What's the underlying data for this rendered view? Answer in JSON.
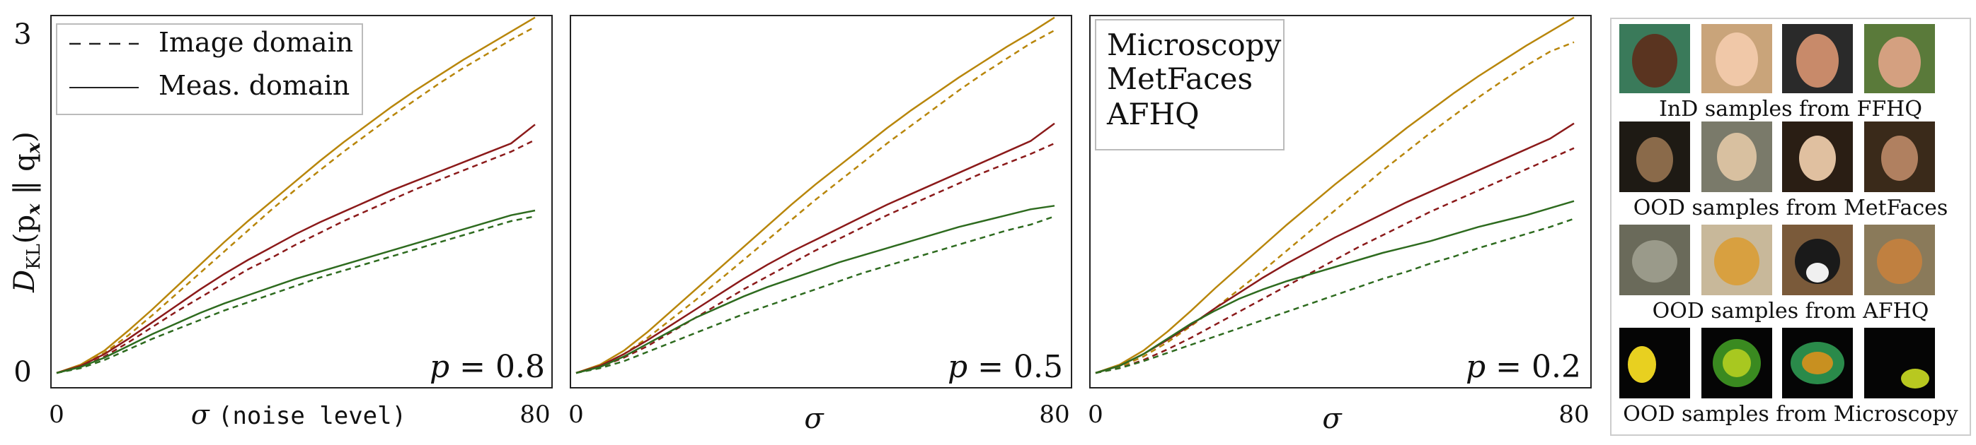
{
  "figure": {
    "y_axis_label": "D_KL(p_x ‖ q_x)",
    "y_axis_label_main": "D",
    "y_axis_label_sub": "KL",
    "y_axis_label_args": "(p",
    "y_axis_label_mid": " ‖ q",
    "y_axis_label_close": ")",
    "y_axis_label_x": "x",
    "y_ticks": [
      "3",
      "0"
    ]
  },
  "legend_styles": {
    "image_domain": "Image domain",
    "meas_domain": "Meas. domain"
  },
  "legend_datasets": [
    {
      "name": "Microscopy",
      "color": "#b8860b"
    },
    {
      "name": "MetFaces",
      "color": "#3a8a3a"
    },
    {
      "name": "AFHQ",
      "color": "#a83240"
    }
  ],
  "colors": {
    "microscopy": "#b8860b",
    "metfaces": "#2e6b1f",
    "afhq": "#8b1a1a",
    "metfaces_legend": "#4f9a4f",
    "afhq_legend": "#b0505a"
  },
  "chart_data": [
    {
      "type": "line",
      "annotation": "p = 0.8",
      "annotation_p": "p",
      "annotation_val": "= 0.8",
      "xlabel_symbol": "σ",
      "xlabel_text": "(noise level)",
      "xlabel": "σ (noise level)",
      "x_ticks": [
        "0",
        "80"
      ],
      "xlim": [
        0,
        80
      ],
      "ylim": [
        0,
        3
      ],
      "series": [
        {
          "name": "Microscopy",
          "style": "Meas. domain",
          "x": [
            0,
            4,
            8,
            12,
            16,
            20,
            24,
            28,
            32,
            36,
            40,
            44,
            48,
            52,
            56,
            60,
            64,
            68,
            72,
            76,
            80
          ],
          "y": [
            0,
            0.07,
            0.19,
            0.36,
            0.54,
            0.73,
            0.92,
            1.11,
            1.29,
            1.46,
            1.63,
            1.8,
            1.96,
            2.11,
            2.26,
            2.4,
            2.53,
            2.66,
            2.78,
            2.9,
            3.02
          ]
        },
        {
          "name": "Microscopy",
          "style": "Image domain",
          "x": [
            0,
            4,
            8,
            12,
            16,
            20,
            24,
            28,
            32,
            36,
            40,
            44,
            48,
            52,
            56,
            60,
            64,
            68,
            72,
            76,
            80
          ],
          "y": [
            0,
            0.06,
            0.17,
            0.32,
            0.49,
            0.67,
            0.85,
            1.03,
            1.21,
            1.39,
            1.56,
            1.72,
            1.88,
            2.03,
            2.18,
            2.32,
            2.46,
            2.59,
            2.71,
            2.83,
            2.94
          ]
        },
        {
          "name": "AFHQ",
          "style": "Meas. domain",
          "x": [
            0,
            4,
            8,
            12,
            16,
            20,
            24,
            28,
            32,
            36,
            40,
            44,
            48,
            52,
            56,
            60,
            64,
            68,
            72,
            76,
            80
          ],
          "y": [
            0,
            0.06,
            0.16,
            0.29,
            0.43,
            0.57,
            0.71,
            0.84,
            0.96,
            1.07,
            1.18,
            1.28,
            1.37,
            1.46,
            1.55,
            1.63,
            1.71,
            1.79,
            1.87,
            1.95,
            2.11
          ]
        },
        {
          "name": "AFHQ",
          "style": "Image domain",
          "x": [
            0,
            4,
            8,
            12,
            16,
            20,
            24,
            28,
            32,
            36,
            40,
            44,
            48,
            52,
            56,
            60,
            64,
            68,
            72,
            76,
            80
          ],
          "y": [
            0,
            0.05,
            0.14,
            0.26,
            0.39,
            0.52,
            0.64,
            0.76,
            0.88,
            0.98,
            1.09,
            1.19,
            1.29,
            1.38,
            1.47,
            1.56,
            1.64,
            1.72,
            1.8,
            1.88,
            1.98
          ]
        },
        {
          "name": "MetFaces",
          "style": "Meas. domain",
          "x": [
            0,
            4,
            8,
            12,
            16,
            20,
            24,
            28,
            32,
            36,
            40,
            44,
            48,
            52,
            56,
            60,
            64,
            68,
            72,
            76,
            80
          ],
          "y": [
            0,
            0.05,
            0.13,
            0.23,
            0.33,
            0.42,
            0.51,
            0.59,
            0.66,
            0.73,
            0.8,
            0.86,
            0.92,
            0.98,
            1.04,
            1.1,
            1.16,
            1.22,
            1.28,
            1.34,
            1.38
          ]
        },
        {
          "name": "MetFaces",
          "style": "Image domain",
          "x": [
            0,
            4,
            8,
            12,
            16,
            20,
            24,
            28,
            32,
            36,
            40,
            44,
            48,
            52,
            56,
            60,
            64,
            68,
            72,
            76,
            80
          ],
          "y": [
            0,
            0.04,
            0.11,
            0.2,
            0.29,
            0.37,
            0.45,
            0.53,
            0.6,
            0.67,
            0.74,
            0.81,
            0.87,
            0.93,
            0.99,
            1.05,
            1.11,
            1.17,
            1.23,
            1.29,
            1.33
          ]
        }
      ]
    },
    {
      "type": "line",
      "annotation": "p = 0.5",
      "annotation_p": "p",
      "annotation_val": "= 0.5",
      "xlabel": "σ",
      "xlabel_symbol": "σ",
      "x_ticks": [
        "0",
        "80"
      ],
      "xlim": [
        0,
        80
      ],
      "ylim": [
        0,
        3
      ],
      "series": [
        {
          "name": "Microscopy",
          "style": "Meas. domain",
          "x": [
            0,
            4,
            8,
            12,
            16,
            20,
            24,
            28,
            32,
            36,
            40,
            44,
            48,
            52,
            56,
            60,
            64,
            68,
            72,
            76,
            80
          ],
          "y": [
            0,
            0.07,
            0.19,
            0.35,
            0.53,
            0.71,
            0.89,
            1.07,
            1.25,
            1.43,
            1.6,
            1.76,
            1.92,
            2.08,
            2.23,
            2.37,
            2.51,
            2.64,
            2.77,
            2.89,
            3.02
          ]
        },
        {
          "name": "Microscopy",
          "style": "Image domain",
          "x": [
            0,
            4,
            8,
            12,
            16,
            20,
            24,
            28,
            32,
            36,
            40,
            44,
            48,
            52,
            56,
            60,
            64,
            68,
            72,
            76,
            80
          ],
          "y": [
            0,
            0.06,
            0.16,
            0.3,
            0.46,
            0.62,
            0.79,
            0.96,
            1.13,
            1.3,
            1.47,
            1.63,
            1.79,
            1.95,
            2.1,
            2.25,
            2.4,
            2.54,
            2.67,
            2.8,
            2.91
          ]
        },
        {
          "name": "AFHQ",
          "style": "Meas. domain",
          "x": [
            0,
            4,
            8,
            12,
            16,
            20,
            24,
            28,
            32,
            36,
            40,
            44,
            48,
            52,
            56,
            60,
            64,
            68,
            72,
            76,
            80
          ],
          "y": [
            0,
            0.06,
            0.16,
            0.28,
            0.41,
            0.54,
            0.67,
            0.8,
            0.92,
            1.03,
            1.13,
            1.23,
            1.33,
            1.43,
            1.52,
            1.61,
            1.7,
            1.79,
            1.88,
            1.97,
            2.12
          ]
        },
        {
          "name": "AFHQ",
          "style": "Image domain",
          "x": [
            0,
            4,
            8,
            12,
            16,
            20,
            24,
            28,
            32,
            36,
            40,
            44,
            48,
            52,
            56,
            60,
            64,
            68,
            72,
            76,
            80
          ],
          "y": [
            0,
            0.05,
            0.13,
            0.23,
            0.35,
            0.47,
            0.59,
            0.71,
            0.82,
            0.93,
            1.04,
            1.14,
            1.24,
            1.34,
            1.43,
            1.52,
            1.61,
            1.7,
            1.78,
            1.86,
            1.95
          ]
        },
        {
          "name": "MetFaces",
          "style": "Meas. domain",
          "x": [
            0,
            4,
            8,
            12,
            16,
            20,
            24,
            28,
            32,
            36,
            40,
            44,
            48,
            52,
            56,
            60,
            64,
            68,
            72,
            76,
            80
          ],
          "y": [
            0,
            0.05,
            0.14,
            0.25,
            0.36,
            0.47,
            0.56,
            0.65,
            0.73,
            0.8,
            0.87,
            0.94,
            1.0,
            1.06,
            1.12,
            1.18,
            1.24,
            1.29,
            1.34,
            1.39,
            1.42
          ]
        },
        {
          "name": "MetFaces",
          "style": "Image domain",
          "x": [
            0,
            4,
            8,
            12,
            16,
            20,
            24,
            28,
            32,
            36,
            40,
            44,
            48,
            52,
            56,
            60,
            64,
            68,
            72,
            76,
            80
          ],
          "y": [
            0,
            0.04,
            0.1,
            0.18,
            0.26,
            0.34,
            0.42,
            0.5,
            0.57,
            0.64,
            0.71,
            0.78,
            0.85,
            0.91,
            0.97,
            1.03,
            1.09,
            1.15,
            1.21,
            1.26,
            1.33
          ]
        }
      ]
    },
    {
      "type": "line",
      "annotation": "p = 0.2",
      "annotation_p": "p",
      "annotation_val": "= 0.2",
      "xlabel": "σ",
      "xlabel_symbol": "σ",
      "x_ticks": [
        "0",
        "80"
      ],
      "xlim": [
        0,
        80
      ],
      "ylim": [
        0,
        3
      ],
      "series": [
        {
          "name": "Microscopy",
          "style": "Meas. domain",
          "x": [
            0,
            4,
            8,
            12,
            16,
            20,
            24,
            28,
            32,
            36,
            40,
            44,
            48,
            52,
            56,
            60,
            64,
            68,
            72,
            76,
            80
          ],
          "y": [
            0,
            0.07,
            0.19,
            0.35,
            0.53,
            0.72,
            0.9,
            1.08,
            1.26,
            1.43,
            1.6,
            1.76,
            1.92,
            2.08,
            2.23,
            2.38,
            2.52,
            2.65,
            2.78,
            2.9,
            3.02
          ]
        },
        {
          "name": "Microscopy",
          "style": "Image domain",
          "x": [
            0,
            4,
            8,
            12,
            16,
            20,
            24,
            28,
            32,
            36,
            40,
            44,
            48,
            52,
            56,
            60,
            64,
            68,
            72,
            76,
            80
          ],
          "y": [
            0,
            0.05,
            0.14,
            0.26,
            0.4,
            0.55,
            0.71,
            0.87,
            1.04,
            1.21,
            1.38,
            1.55,
            1.72,
            1.88,
            2.04,
            2.19,
            2.34,
            2.48,
            2.61,
            2.73,
            2.81
          ]
        },
        {
          "name": "AFHQ",
          "style": "Meas. domain",
          "x": [
            0,
            4,
            8,
            12,
            16,
            20,
            24,
            28,
            32,
            36,
            40,
            44,
            48,
            52,
            56,
            60,
            64,
            68,
            72,
            76,
            80
          ],
          "y": [
            0,
            0.06,
            0.16,
            0.28,
            0.41,
            0.55,
            0.68,
            0.81,
            0.93,
            1.04,
            1.15,
            1.25,
            1.35,
            1.45,
            1.54,
            1.63,
            1.72,
            1.81,
            1.9,
            1.99,
            2.12
          ]
        },
        {
          "name": "AFHQ",
          "style": "Image domain",
          "x": [
            0,
            4,
            8,
            12,
            16,
            20,
            24,
            28,
            32,
            36,
            40,
            44,
            48,
            52,
            56,
            60,
            64,
            68,
            72,
            76,
            80
          ],
          "y": [
            0,
            0.04,
            0.11,
            0.2,
            0.3,
            0.41,
            0.52,
            0.63,
            0.74,
            0.85,
            0.96,
            1.07,
            1.17,
            1.27,
            1.37,
            1.46,
            1.55,
            1.64,
            1.73,
            1.82,
            1.91
          ]
        },
        {
          "name": "MetFaces",
          "style": "Meas. domain",
          "x": [
            0,
            4,
            8,
            12,
            16,
            20,
            24,
            28,
            32,
            36,
            40,
            44,
            48,
            52,
            56,
            60,
            64,
            68,
            72,
            76,
            80
          ],
          "y": [
            0,
            0.06,
            0.16,
            0.29,
            0.42,
            0.53,
            0.63,
            0.71,
            0.78,
            0.84,
            0.9,
            0.96,
            1.02,
            1.07,
            1.12,
            1.18,
            1.24,
            1.29,
            1.34,
            1.4,
            1.46
          ]
        },
        {
          "name": "MetFaces",
          "style": "Image domain",
          "x": [
            0,
            4,
            8,
            12,
            16,
            20,
            24,
            28,
            32,
            36,
            40,
            44,
            48,
            52,
            56,
            60,
            64,
            68,
            72,
            76,
            80
          ],
          "y": [
            0,
            0.04,
            0.1,
            0.17,
            0.24,
            0.31,
            0.38,
            0.45,
            0.52,
            0.59,
            0.66,
            0.73,
            0.8,
            0.86,
            0.93,
            0.99,
            1.06,
            1.12,
            1.18,
            1.24,
            1.31
          ]
        }
      ]
    }
  ],
  "samples": {
    "rows": [
      {
        "caption": "InD samples from FFHQ",
        "kind": "face"
      },
      {
        "caption": "OOD samples from MetFaces",
        "kind": "painting"
      },
      {
        "caption": "OOD samples from AFHQ",
        "kind": "animal"
      },
      {
        "caption": "OOD samples from Microscopy",
        "kind": "cell"
      }
    ]
  }
}
